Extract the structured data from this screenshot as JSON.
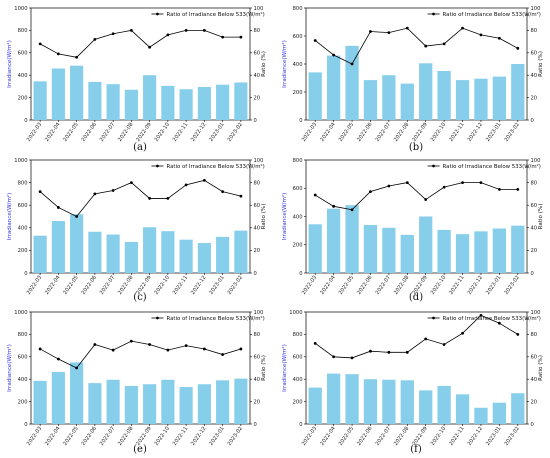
{
  "legend_label": "Ratio of Irradiance Below 533(W/m²)",
  "colors": {
    "bar": "#87ceeb",
    "line": "#000000",
    "left_axis_label": "#2f36e0"
  },
  "chart_data": [
    {
      "panel": "(a)",
      "type": "bar+line",
      "categories": [
        "2022-03",
        "2022-04",
        "2022-05",
        "2022-06",
        "2022-07",
        "2022-08",
        "2022-09",
        "2022-10",
        "2022-11",
        "2022-12",
        "2023-01",
        "2023-02"
      ],
      "bar_values": [
        345,
        460,
        485,
        340,
        320,
        270,
        400,
        305,
        275,
        295,
        315,
        335
      ],
      "line_values": [
        68,
        59,
        56,
        72,
        77,
        80,
        65,
        76,
        80,
        80,
        74,
        74
      ],
      "ylabel_left": "Irradiance(W/m²)",
      "ylabel_right": "Ratio (%)",
      "ylim_left": [
        0,
        1000
      ],
      "ylim_right": [
        0,
        100
      ],
      "legend": "top-right",
      "grid": false
    },
    {
      "panel": "(b)",
      "type": "bar+line",
      "categories": [
        "2022-03",
        "2022-04",
        "2022-05",
        "2022-06",
        "2022-07",
        "2022-08",
        "2022-09",
        "2022-10",
        "2022-11",
        "2022-12",
        "2023-01",
        "2023-02"
      ],
      "bar_values": [
        340,
        460,
        530,
        285,
        320,
        260,
        405,
        350,
        285,
        295,
        310,
        400
      ],
      "line_values": [
        71,
        58,
        50,
        79,
        78,
        82,
        66,
        68,
        82,
        76,
        73,
        64
      ],
      "ylabel_left": "Irradiance(W/m²)",
      "ylabel_right": "Ratio (%)",
      "ylim_left": [
        0,
        800
      ],
      "ylim_right": [
        0,
        100
      ],
      "legend": "top-right",
      "grid": false
    },
    {
      "panel": "(c)",
      "type": "bar+line",
      "categories": [
        "2022-03",
        "2022-04",
        "2022-05",
        "2022-06",
        "2022-07",
        "2022-08",
        "2022-09",
        "2022-10",
        "2022-11",
        "2022-12",
        "2023-01",
        "2023-02"
      ],
      "bar_values": [
        330,
        460,
        520,
        365,
        340,
        275,
        405,
        370,
        295,
        265,
        320,
        375
      ],
      "line_values": [
        72,
        58,
        50,
        70,
        73,
        80,
        66,
        66,
        78,
        82,
        72,
        68
      ],
      "ylabel_left": "Irradiance(W/m²)",
      "ylabel_right": "Ratio (%)",
      "ylim_left": [
        0,
        1000
      ],
      "ylim_right": [
        0,
        100
      ],
      "legend": "top-right",
      "grid": false
    },
    {
      "panel": "(d)",
      "type": "bar+line",
      "categories": [
        "2022-03",
        "2022-04",
        "2022-05",
        "2022-06",
        "2022-07",
        "2022-08",
        "2022-09",
        "2022-10",
        "2022-11",
        "2022-12",
        "2023-01",
        "2023-02"
      ],
      "bar_values": [
        345,
        455,
        480,
        340,
        320,
        270,
        400,
        305,
        275,
        295,
        315,
        335
      ],
      "line_values": [
        69,
        59,
        56,
        72,
        77,
        80,
        65,
        76,
        80,
        80,
        74,
        74
      ],
      "ylabel_left": "Irradiance(W/m²)",
      "ylabel_right": "Ratio (%)",
      "ylim_left": [
        0,
        800
      ],
      "ylim_right": [
        0,
        100
      ],
      "legend": "top-right",
      "grid": false
    },
    {
      "panel": "(e)",
      "type": "bar+line",
      "categories": [
        "2022-03",
        "2022-04",
        "2022-05",
        "2022-06",
        "2022-07",
        "2022-08",
        "2022-09",
        "2022-10",
        "2022-11",
        "2022-12",
        "2023-01",
        "2023-02"
      ],
      "bar_values": [
        385,
        465,
        550,
        365,
        395,
        340,
        355,
        395,
        330,
        355,
        390,
        405
      ],
      "line_values": [
        67,
        58,
        50,
        71,
        66,
        74,
        71,
        66,
        70,
        67,
        62,
        67
      ],
      "ylabel_left": "Irradiance(W/m²)",
      "ylabel_right": "Ratio (%)",
      "ylim_left": [
        0,
        1000
      ],
      "ylim_right": [
        0,
        100
      ],
      "legend": "top-right",
      "grid": false
    },
    {
      "panel": "(f)",
      "type": "bar+line",
      "categories": [
        "2022-03",
        "2022-04",
        "2022-05",
        "2022-06",
        "2022-07",
        "2022-08",
        "2022-09",
        "2022-10",
        "2022-11",
        "2022-12",
        "2023-01",
        "2023-02"
      ],
      "bar_values": [
        325,
        450,
        445,
        400,
        395,
        390,
        300,
        340,
        265,
        145,
        190,
        275
      ],
      "line_values": [
        72,
        60,
        59,
        65,
        64,
        64,
        76,
        71,
        81,
        97,
        90,
        80
      ],
      "ylabel_left": "Irradiance(W/m²)",
      "ylabel_right": "Ratio (%)",
      "ylim_left": [
        0,
        1000
      ],
      "ylim_right": [
        0,
        100
      ],
      "legend": "top-right",
      "grid": false
    }
  ]
}
